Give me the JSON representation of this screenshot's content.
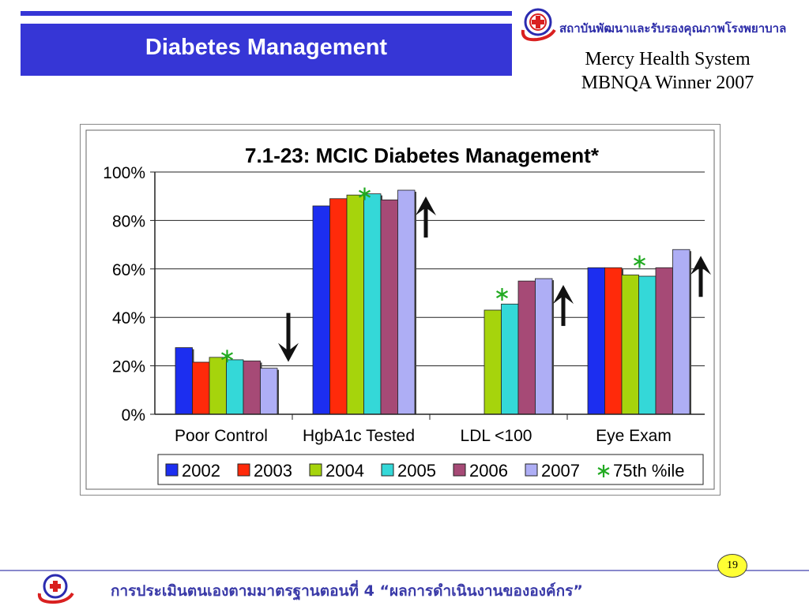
{
  "header": {
    "slide_title": "Diabetes Management",
    "org_name_thai": "สถาบันพัฒนาและรับรองคุณภาพโรงพยาบาล",
    "org_line1": "Mercy Health System",
    "org_line2": "MBNQA Winner 2007"
  },
  "footer": {
    "page_number": "19",
    "text": "การประเมินตนเองตามมาตรฐานตอนที่ 4 “ผลการดำเนินงานขององค์กร”"
  },
  "colors": {
    "header_blue": "#3636d6",
    "benchmark_marker": "#22aa22",
    "arrow": "#111111"
  },
  "chart_data": {
    "type": "bar",
    "title": "7.1-23: MCIC Diabetes Management*",
    "categories": [
      "Poor Control",
      "HgbA1c Tested",
      "LDL <100",
      "Eye Exam"
    ],
    "ylim": [
      0,
      100
    ],
    "yticks": [
      "0%",
      "20%",
      "40%",
      "60%",
      "80%",
      "100%"
    ],
    "y_tick_values": [
      0,
      20,
      40,
      60,
      80,
      100
    ],
    "grid": true,
    "legend_position": "bottom",
    "series": [
      {
        "name": "2002",
        "color": "#1c2ef0",
        "values": [
          27.5,
          86,
          null,
          60.5
        ]
      },
      {
        "name": "2003",
        "color": "#ff2a0a",
        "values": [
          21.5,
          89,
          null,
          60.5
        ]
      },
      {
        "name": "2004",
        "color": "#a6d40c",
        "values": [
          23.5,
          90.5,
          43,
          57.5
        ]
      },
      {
        "name": "2005",
        "color": "#34d8d8",
        "values": [
          22.5,
          91,
          45.5,
          57
        ]
      },
      {
        "name": "2006",
        "color": "#a64a76",
        "values": [
          22,
          88.5,
          55,
          60.5
        ]
      },
      {
        "name": "2007",
        "color": "#aeaef5",
        "values": [
          19,
          92.5,
          56,
          68
        ]
      }
    ],
    "benchmark": {
      "name": "75th %ile",
      "values": [
        24,
        91,
        49.5,
        63
      ]
    },
    "trend_arrows": [
      "down",
      "up",
      "up",
      "up"
    ]
  }
}
